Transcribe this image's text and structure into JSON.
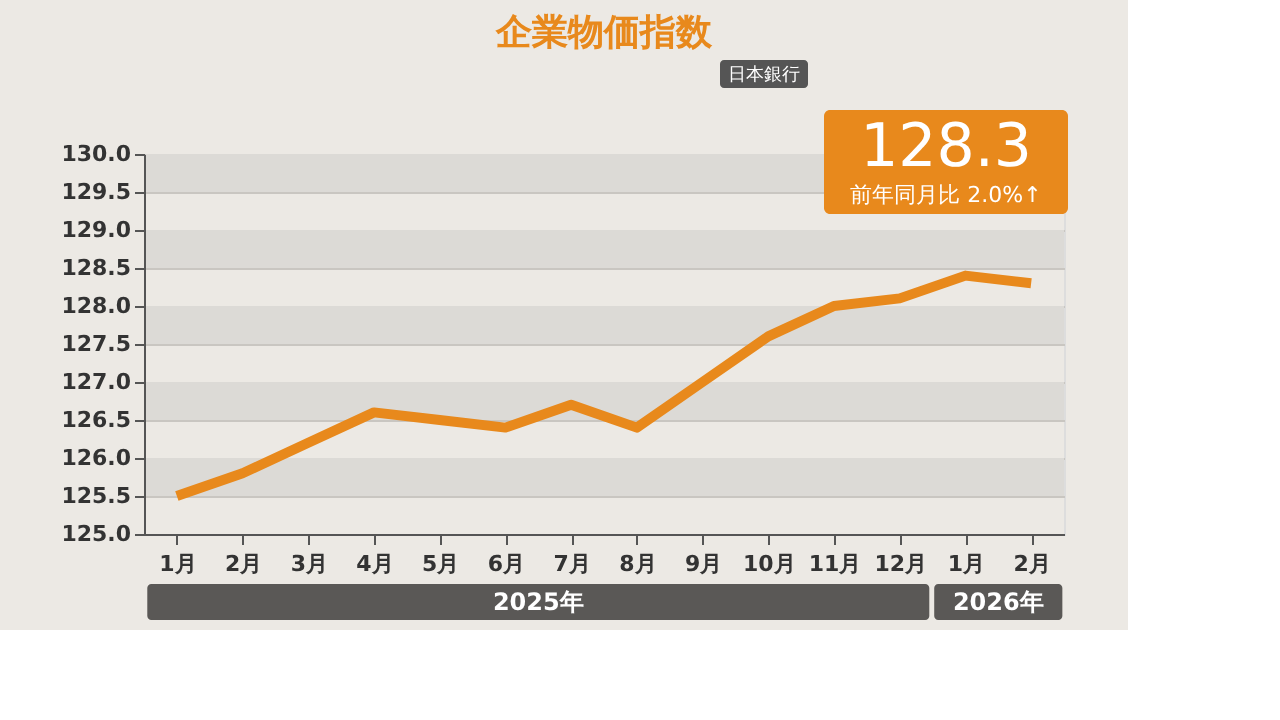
{
  "chart_data": {
    "type": "line",
    "title": "企業物価指数",
    "categories": [
      "1月",
      "2月",
      "3月",
      "4月",
      "5月",
      "6月",
      "7月",
      "8月",
      "9月",
      "10月",
      "11月",
      "12月",
      "1月",
      "2月"
    ],
    "series": [
      {
        "color": "#e8891c",
        "values": [
          125.5,
          125.8,
          126.2,
          126.6,
          126.5,
          126.4,
          126.7,
          126.4,
          127.0,
          127.6,
          128.0,
          128.1,
          128.4,
          128.3
        ],
        "value_labels": [
          null,
          null,
          null,
          null,
          null,
          null,
          null,
          null,
          null,
          null,
          null,
          null,
          null,
          "128.3"
        ]
      }
    ],
    "ylim": [
      125.0,
      130.0
    ],
    "yticks": [
      {
        "value": 125.0,
        "label": "125.0"
      },
      {
        "value": 125.5,
        "label": "125.5"
      },
      {
        "value": 126.0,
        "label": "126.0"
      },
      {
        "value": 126.5,
        "label": "126.5"
      },
      {
        "value": 127.0,
        "label": "127.0"
      },
      {
        "value": 127.5,
        "label": "127.5"
      },
      {
        "value": 128.0,
        "label": "128.0"
      },
      {
        "value": 128.5,
        "label": "128.5"
      },
      {
        "value": 129.0,
        "label": "129.0"
      },
      {
        "value": 129.5,
        "label": "129.5"
      },
      {
        "value": 130.0,
        "label": "130.0"
      }
    ],
    "grid": "y",
    "marker": "none",
    "line_style": "solid",
    "annotations": [
      "2025年",
      "2026年",
      "前年同月比 2.0%↑",
      "日本銀行"
    ]
  }
}
